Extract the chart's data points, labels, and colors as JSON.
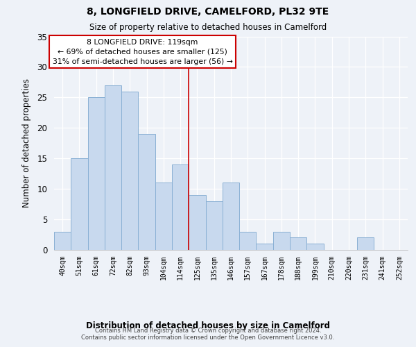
{
  "title": "8, LONGFIELD DRIVE, CAMELFORD, PL32 9TE",
  "subtitle": "Size of property relative to detached houses in Camelford",
  "xlabel": "Distribution of detached houses by size in Camelford",
  "ylabel": "Number of detached properties",
  "bar_labels": [
    "40sqm",
    "51sqm",
    "61sqm",
    "72sqm",
    "82sqm",
    "93sqm",
    "104sqm",
    "114sqm",
    "125sqm",
    "135sqm",
    "146sqm",
    "157sqm",
    "167sqm",
    "178sqm",
    "188sqm",
    "199sqm",
    "210sqm",
    "220sqm",
    "231sqm",
    "241sqm",
    "252sqm"
  ],
  "bar_values": [
    3,
    15,
    25,
    27,
    26,
    19,
    11,
    14,
    9,
    8,
    11,
    3,
    1,
    3,
    2,
    1,
    0,
    0,
    2,
    0,
    0
  ],
  "bar_color": "#c8d9ee",
  "bar_edgecolor": "#8ab0d4",
  "ylim": [
    0,
    35
  ],
  "yticks": [
    0,
    5,
    10,
    15,
    20,
    25,
    30,
    35
  ],
  "vline_x": 7.5,
  "vline_color": "#cc0000",
  "annotation_title": "8 LONGFIELD DRIVE: 119sqm",
  "annotation_line1": "← 69% of detached houses are smaller (125)",
  "annotation_line2": "31% of semi-detached houses are larger (56) →",
  "annotation_box_color": "#ffffff",
  "annotation_box_edgecolor": "#cc0000",
  "footer_line1": "Contains HM Land Registry data © Crown copyright and database right 2024.",
  "footer_line2": "Contains public sector information licensed under the Open Government Licence v3.0.",
  "background_color": "#eef2f8",
  "plot_bg_color": "#eef2f8",
  "grid_color": "#ffffff"
}
